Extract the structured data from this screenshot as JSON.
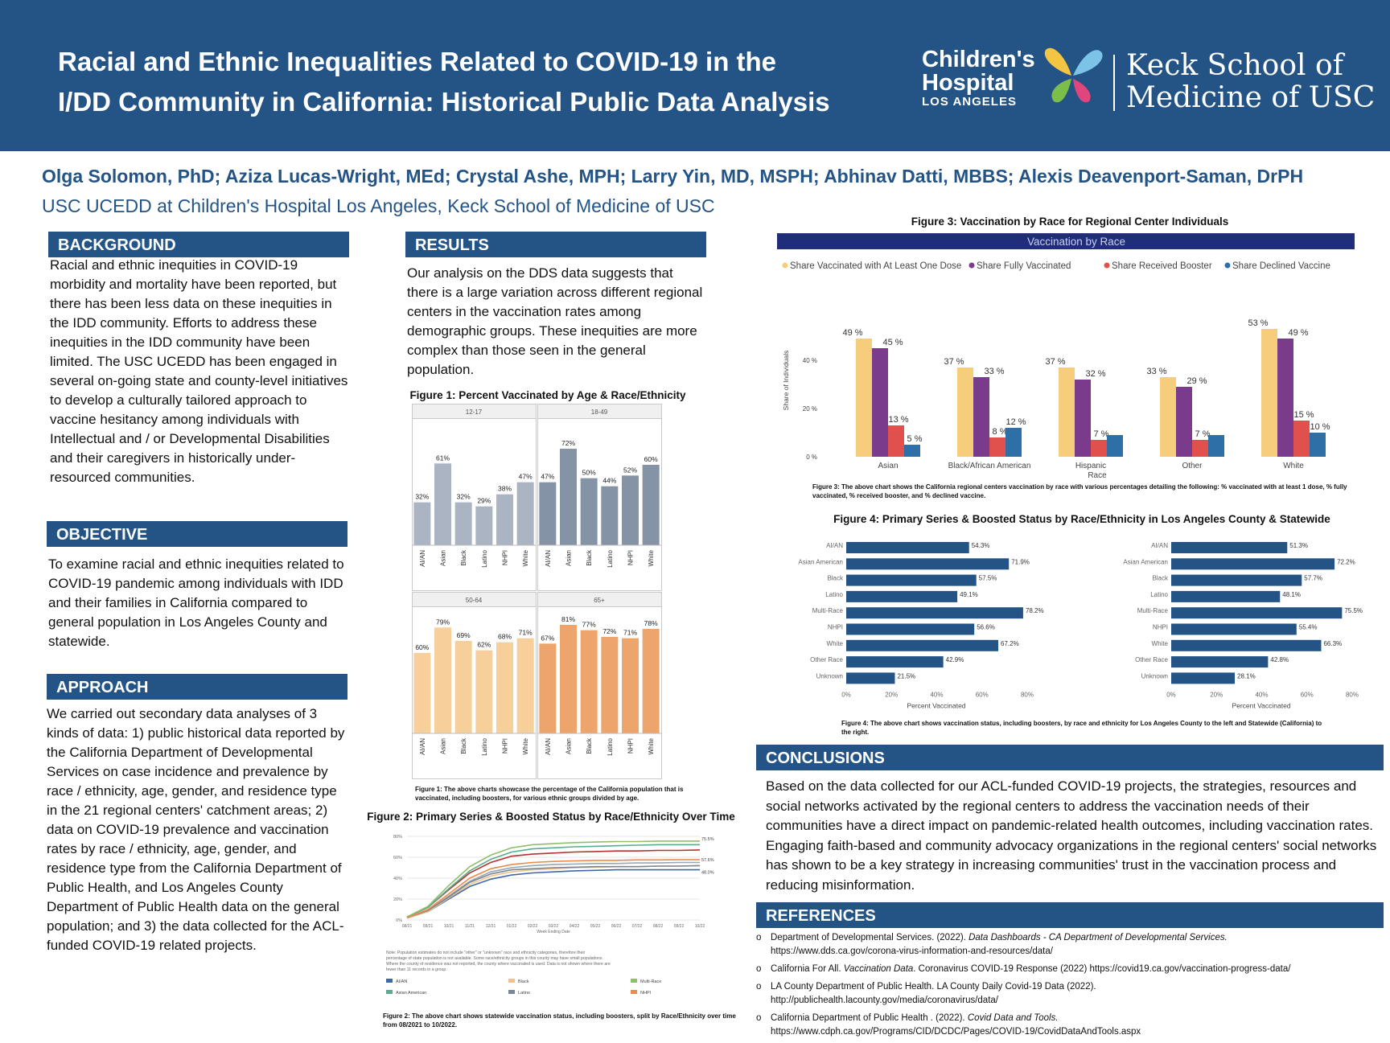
{
  "header": {
    "title_line1": "Racial and Ethnic Inequalities Related to COVID-19 in the",
    "title_line2": "I/DD Community in California: Historical Public Data Analysis",
    "logo_chla_line1": "Children's",
    "logo_chla_line2": "Hospital",
    "logo_chla_line3": "LOS ANGELES",
    "logo_keck_line1": "Keck School of",
    "logo_keck_line2": "Medicine of USC"
  },
  "authors": "Olga Solomon, PhD; Aziza Lucas-Wright, MEd; Crystal Ashe, MPH; Larry Yin, MD, MSPH; Abhinav Datti, MBBS; Alexis Deavenport-Saman, DrPH",
  "affiliation": "USC UCEDD at Children's Hospital Los Angeles, Keck School of Medicine of USC",
  "background": {
    "heading": "BACKGROUND",
    "text": "Racial and ethnic inequities in COVID-19 morbidity and mortality have been reported, but there has been less data on these inequities in the IDD community. Efforts to address these inequities in the IDD community have been limited. The USC UCEDD has been engaged in several on-going state and county-level initiatives to develop a culturally tailored approach to vaccine hesitancy among individuals with Intellectual and / or Developmental Disabilities and their caregivers in historically under-resourced communities."
  },
  "objective": {
    "heading": "OBJECTIVE",
    "text": "To examine racial and ethnic inequities related to COVID-19 pandemic among individuals with IDD and their families in California compared to general population in Los Angeles County and statewide."
  },
  "approach": {
    "heading": "APPROACH",
    "text": "We carried out secondary data analyses of 3 kinds of data: 1) public historical data reported by the California Department of Developmental Services on case incidence and prevalence by race / ethnicity, age, gender, and residence type in the 21 regional centers' catchment areas; 2) data on COVID-19 prevalence and vaccination rates by race / ethnicity, age, gender, and residence type from the California Department of Public Health, and Los Angeles County Department of Public Health data on the general population; and 3) the data collected for the ACL-funded COVID-19 related projects."
  },
  "results": {
    "heading": "RESULTS",
    "text": "Our analysis on the DDS data suggests that there is a large variation across different regional centers in the vaccination rates among demographic groups. These inequities are more complex than those seen in the general population."
  },
  "conclusions": {
    "heading": "CONCLUSIONS",
    "text": "Based on the data collected for our ACL-funded COVID-19 projects, the strategies, resources and social networks activated by the regional centers to address the vaccination needs of their communities have a direct impact on pandemic-related health outcomes, including vaccination rates. Engaging faith-based and community advocacy organizations in the regional centers' social networks has shown to be a key strategy in increasing communities' trust in the vaccination process and reducing misinformation."
  },
  "references": {
    "heading": "REFERENCES",
    "bullet": "o",
    "items": [
      {
        "a": "Department of Developmental Services. (2022). ",
        "i": "Data Dashboards - CA Department of Developmental Services.",
        "b": "",
        "line2": "https://www.dds.ca.gov/corona-virus-information-and-resources/data/"
      },
      {
        "a": "California For All. ",
        "i": "Vaccination Data",
        "b": ". Coronavirus COVID-19 Response (2022) https://covid19.ca.gov/vaccination-progress-data/",
        "line2": ""
      },
      {
        "a": "LA County Department of Public Health. LA County Daily Covid-19 Data (2022).",
        "i": "",
        "b": "",
        "line2": "http://publichealth.lacounty.gov/media/coronavirus/data/"
      },
      {
        "a": "California Department of Public Health . (2022). ",
        "i": "Covid Data and Tools.",
        "b": "",
        "line2": "https://www.cdph.ca.gov/Programs/CID/DCDC/Pages/COVID-19/CovidDataAndTools.aspx"
      }
    ]
  },
  "colors": {
    "navy": "#245486",
    "gray": "#aab4c2",
    "slate": "#8593a6",
    "peach": "#f7cf9a",
    "orange": "#eda56b"
  },
  "chart_data": [
    {
      "id": "fig1",
      "type": "bar",
      "title": "Figure 1: Percent Vaccinated by Age & Race/Ethnicity",
      "categories": [
        "AI/AN",
        "Asian",
        "Black",
        "Latino",
        "NHPI",
        "White"
      ],
      "panels": [
        {
          "label": "12-17",
          "values": [
            32,
            61,
            32,
            29,
            38,
            47
          ],
          "labels": [
            "32%",
            "61%",
            "32%",
            "29%",
            "38%",
            "47%"
          ]
        },
        {
          "label": "18-49",
          "values": [
            47,
            72,
            50,
            44,
            52,
            60
          ],
          "labels": [
            "47%",
            "72%",
            "50%",
            "44%",
            "52%",
            "60%"
          ]
        },
        {
          "label": "50-64",
          "values": [
            60,
            79,
            69,
            62,
            68,
            71
          ],
          "labels": [
            "60%",
            "79%",
            "69%",
            "62%",
            "68%",
            "71%"
          ]
        },
        {
          "label": "65+",
          "values": [
            67,
            81,
            77,
            72,
            71,
            78
          ],
          "labels": [
            "67%",
            "81%",
            "77%",
            "72%",
            "71%",
            "78%"
          ]
        }
      ],
      "ylim": [
        0,
        100
      ],
      "caption": "Figure 1: The above charts showcase the percentage of the California population that is vaccinated, including boosters, for various ethnic groups divided by age."
    },
    {
      "id": "fig2",
      "type": "line",
      "title": "Figure 2: Primary Series & Boosted Status by Race/Ethnicity Over Time",
      "y_ticks": [
        "0%",
        "20%",
        "40%",
        "60%",
        "80%"
      ],
      "ylim": [
        0,
        80
      ],
      "x_ticks": [
        "08/21",
        "09/21",
        "10/21",
        "11/21",
        "12/21",
        "01/22",
        "02/22",
        "03/22",
        "04/22",
        "05/22",
        "06/22",
        "07/22",
        "08/22",
        "09/22",
        "10/22"
      ],
      "xlabel": "Week Ending Date",
      "end_labels": [
        "75.5%",
        "57.6%",
        "48.0%"
      ],
      "series": [
        {
          "name": "AI/AN",
          "color": "#3d6aa6",
          "values": [
            2,
            8,
            20,
            32,
            39,
            43,
            45,
            46,
            47,
            47.5,
            48,
            48,
            48,
            48,
            48
          ]
        },
        {
          "name": "Asian American",
          "color": "#5bab8e",
          "values": [
            3,
            12,
            30,
            47,
            58,
            65,
            68,
            69,
            70,
            70.5,
            71,
            71.5,
            72,
            72,
            72
          ]
        },
        {
          "name": "Black",
          "color": "#f2c28a",
          "values": [
            2,
            8,
            21,
            34,
            42,
            46,
            48,
            49,
            50,
            50.5,
            51,
            51,
            51.5,
            51.5,
            52
          ]
        },
        {
          "name": "Latino",
          "color": "#7b8794",
          "values": [
            2,
            9,
            22,
            36,
            44,
            48,
            49,
            50,
            50.5,
            51,
            51,
            51,
            51.5,
            51.5,
            52
          ]
        },
        {
          "name": "Multi-Race",
          "color": "#8fbf6b",
          "values": [
            3,
            13,
            33,
            51,
            62,
            69,
            72,
            73,
            74,
            74.5,
            75,
            75,
            75.5,
            75.5,
            75.5
          ]
        },
        {
          "name": "NHPI",
          "color": "#ed8a4a",
          "values": [
            2,
            10,
            25,
            40,
            49,
            53,
            55,
            56,
            56.5,
            57,
            57,
            57.5,
            57.5,
            57.6,
            57.6
          ]
        }
      ],
      "extra_series": [
        {
          "color": "#b5332e",
          "values": [
            3,
            12,
            29,
            45,
            55,
            61,
            63,
            64,
            65,
            65.5,
            66,
            66,
            66.5,
            66.5,
            67
          ]
        },
        {
          "color": "#9aa6b2",
          "values": [
            2,
            9,
            23,
            37,
            46,
            50,
            52,
            53,
            53.5,
            54,
            54,
            54.5,
            54.5,
            55,
            55
          ]
        }
      ],
      "note": "Note: Population estimates do not include \"other\" or \"unknown\" race and ethnicity categories, therefore their percentage of state population is not available. Some race/ethnicity groups in this county may have small populations. Where the county of residence was not reported, the county where vaccinated is used. Data is not shown where there are fewer than 11 records in a group.",
      "caption": "Figure 2: The above chart shows statewide vaccination status, including boosters, split by Race/Ethnicity over time from 08/2021 to 10/2022."
    },
    {
      "id": "fig3",
      "type": "bar",
      "title": "Figure 3: Vaccination by Race for Regional Center Individuals",
      "banner": "Vaccination by Race",
      "categories": [
        "Asian",
        "Black/African American",
        "Hispanic",
        "Other",
        "White"
      ],
      "series": [
        {
          "name": "Share Vaccinated with At Least One Dose",
          "color": "#f6cd7b",
          "values": [
            49,
            37,
            37,
            33,
            53
          ],
          "labels": [
            "49 %",
            "37 %",
            "37 %",
            "33 %",
            "53 %"
          ]
        },
        {
          "name": "Share Fully Vaccinated",
          "color": "#7b3b8c",
          "values": [
            45,
            33,
            32,
            29,
            49
          ],
          "labels": [
            "45 %",
            "33 %",
            "32 %",
            "29 %",
            "49 %"
          ]
        },
        {
          "name": "Share Received Booster",
          "color": "#e0504d",
          "values": [
            13,
            8,
            7,
            7,
            15
          ],
          "labels": [
            "13 %",
            "8 %",
            "7 %",
            "7 %",
            "15 %"
          ]
        },
        {
          "name": "Share Declined Vaccine",
          "color": "#2f6fa8",
          "values": [
            5,
            12,
            9,
            9,
            10
          ],
          "labels": [
            "5 %",
            "12 %",
            "",
            "",
            "10 %"
          ]
        }
      ],
      "ylim": [
        0,
        60
      ],
      "y_ticks": [
        "0 %",
        "20 %",
        "40 %"
      ],
      "ylabel": "Share of Individuals",
      "xlabel": "Race",
      "caption": "Figure 3: The above chart shows the California regional centers vaccination by race with various percentages detailing the following: % vaccinated with at least 1 dose, % fully vaccinated, % received booster, and % declined vaccine."
    },
    {
      "id": "fig4",
      "type": "bar",
      "title": "Figure 4: Primary Series & Boosted Status by Race/Ethnicity in Los Angeles County & Statewide",
      "categories": [
        "AI/AN",
        "Asian American",
        "Black",
        "Latino",
        "Multi-Race",
        "NHPI",
        "White",
        "Other Race",
        "Unknown"
      ],
      "panels": [
        {
          "name": "Los Angeles County",
          "values": [
            54.3,
            71.9,
            57.5,
            49.1,
            78.2,
            56.6,
            67.2,
            42.9,
            21.5
          ],
          "labels": [
            "54.3%",
            "71.9%",
            "57.5%",
            "49.1%",
            "78.2%",
            "56.6%",
            "67.2%",
            "42.9%",
            "21.5%"
          ]
        },
        {
          "name": "Statewide",
          "values": [
            51.3,
            72.2,
            57.7,
            48.1,
            75.5,
            55.4,
            66.3,
            42.8,
            28.1
          ],
          "labels": [
            "51.3%",
            "72.2%",
            "57.7%",
            "48.1%",
            "75.5%",
            "55.4%",
            "66.3%",
            "42.8%",
            "28.1%"
          ]
        }
      ],
      "x_ticks": [
        "0%",
        "20%",
        "40%",
        "60%",
        "80%"
      ],
      "xlim": [
        0,
        80
      ],
      "xlabel": "Percent Vaccinated",
      "caption": "Figure 4: The above chart shows vaccination status, including boosters, by race and ethnicity for Los Angeles County to the left and Statewide (California) to the right."
    }
  ]
}
